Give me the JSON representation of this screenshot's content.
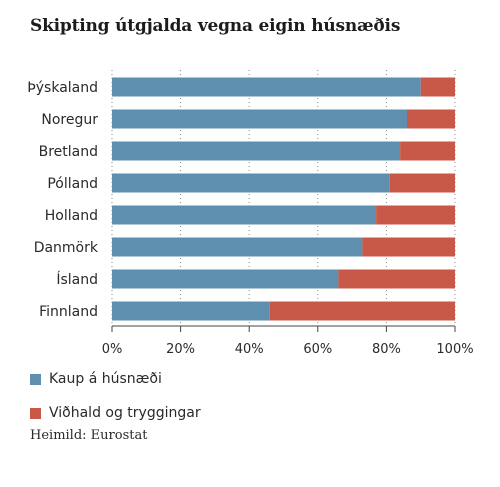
{
  "chart_data": {
    "type": "bar",
    "orientation": "horizontal",
    "stacked": true,
    "title": "Skipting útgjalda vegna eigin húsnæðis",
    "categories": [
      "Þýskaland",
      "Noregur",
      "Bretland",
      "Pólland",
      "Holland",
      "Danmörk",
      "Ísland",
      "Finnland"
    ],
    "series": [
      {
        "name": "Kaup á húsnæði",
        "color": "#5e8fae",
        "values": [
          90,
          86,
          84,
          81,
          77,
          73,
          66,
          46
        ]
      },
      {
        "name": "Viðhald og tryggingar",
        "color": "#c85847",
        "values": [
          10,
          14,
          16,
          19,
          23,
          27,
          34,
          54
        ]
      }
    ],
    "xlim": [
      0,
      100
    ],
    "x_ticks": [
      "0%",
      "20%",
      "40%",
      "60%",
      "80%",
      "100%"
    ],
    "grid": true,
    "legend_position": "bottom-left"
  },
  "source": "Heimild: Eurostat"
}
